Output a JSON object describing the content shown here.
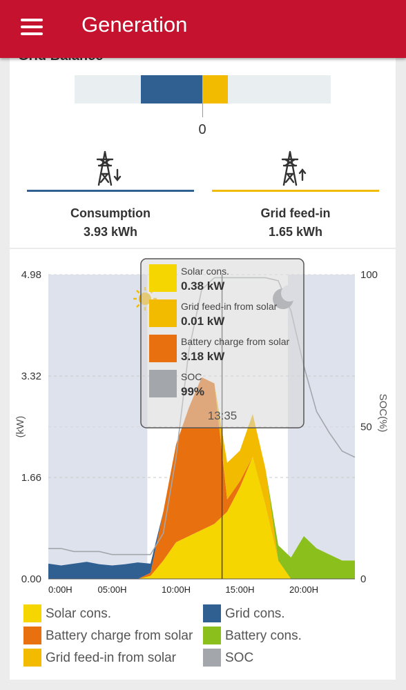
{
  "app": {
    "title": "Generation"
  },
  "grid_balance": {
    "title": "Grid Balance",
    "zero_label": "0",
    "colors": {
      "consumption": "#305f92",
      "feed_in": "#f3bb00"
    }
  },
  "stats": {
    "consumption": {
      "label": "Consumption",
      "value": "3.93 kWh"
    },
    "grid_feed_in": {
      "label": "Grid feed-in",
      "value": "1.65 kWh"
    }
  },
  "chart_data": {
    "type": "area",
    "ylabel": "(kW)",
    "y2label": "SOC(%)",
    "ylim": [
      0,
      4.98
    ],
    "y2lim": [
      0,
      100
    ],
    "yticks": [
      "4.98",
      "3.32",
      "1.66",
      "0.00"
    ],
    "y2ticks": [
      "100",
      "50",
      "0"
    ],
    "xticks": [
      "0:00H",
      "05:00H",
      "10:00H",
      "15:00H",
      "20:00H"
    ],
    "x": [
      "0:00",
      "1:00",
      "2:00",
      "3:00",
      "4:00",
      "5:00",
      "6:00",
      "7:00",
      "8:00",
      "9:00",
      "10:00",
      "11:00",
      "12:00",
      "13:00",
      "14:00",
      "15:00",
      "16:00",
      "17:00",
      "18:00",
      "19:00",
      "20:00",
      "21:00",
      "22:00",
      "23:00",
      "24:00"
    ],
    "series": [
      {
        "name": "Solar cons.",
        "color": "#f5d600",
        "values": [
          0,
          0,
          0,
          0,
          0,
          0,
          0,
          0,
          0.05,
          0.3,
          0.6,
          0.7,
          0.8,
          0.9,
          1.1,
          1.5,
          2.0,
          1.2,
          0.3,
          0,
          0,
          0,
          0,
          0,
          0
        ]
      },
      {
        "name": "Battery charge from solar",
        "color": "#e8700f",
        "values": [
          0,
          0,
          0,
          0,
          0,
          0,
          0,
          0,
          0.05,
          0.8,
          1.6,
          2.1,
          2.5,
          2.3,
          0.2,
          0.1,
          0,
          0,
          0,
          0,
          0,
          0,
          0,
          0,
          0
        ]
      },
      {
        "name": "Grid feed-in from solar",
        "color": "#f3bb00",
        "values": [
          0,
          0,
          0,
          0,
          0,
          0,
          0,
          0,
          0,
          0,
          0,
          0,
          0,
          0,
          0.6,
          0.5,
          0.7,
          0.6,
          0,
          0,
          0,
          0,
          0,
          0,
          0
        ]
      },
      {
        "name": "Grid cons.",
        "color": "#305f92",
        "values": [
          0.25,
          0.22,
          0.25,
          0.28,
          0.24,
          0.22,
          0.24,
          0.27,
          0.15,
          0,
          0,
          0,
          0,
          0,
          0,
          0,
          0,
          0,
          0,
          0,
          0,
          0,
          0,
          0,
          0
        ]
      },
      {
        "name": "Battery cons.",
        "color": "#8bbf1c",
        "values": [
          0,
          0,
          0,
          0,
          0,
          0,
          0,
          0,
          0,
          0,
          0,
          0,
          0,
          0,
          0,
          0,
          0,
          0,
          0.25,
          0.35,
          0.7,
          0.5,
          0.4,
          0.3,
          0.3
        ]
      },
      {
        "name": "SOC",
        "color": "#a3a7ab",
        "axis": "right",
        "values": [
          10,
          10,
          9,
          9,
          9,
          8,
          8,
          8,
          8,
          15,
          40,
          75,
          95,
          99,
          99,
          99,
          99,
          99,
          98,
          88,
          70,
          55,
          48,
          42,
          40
        ]
      }
    ],
    "night_shading": [
      [
        "0:00",
        "7:45"
      ],
      [
        "18:45",
        "24:00"
      ]
    ],
    "cursor": {
      "time": "13:35",
      "x": 13.6
    },
    "tooltip": {
      "time": "13:35",
      "items": [
        {
          "label": "Solar cons.",
          "value": "0.38 kW",
          "color": "#f5d600"
        },
        {
          "label": "Grid feed-in from solar",
          "value": "0.01 kW",
          "color": "#f3bb00"
        },
        {
          "label": "Battery charge from solar",
          "value": "3.18 kW",
          "color": "#e8700f"
        },
        {
          "label": "SOC",
          "value": "99%",
          "color": "#a3a7ab"
        }
      ]
    },
    "icons": [
      "sun-icon",
      "moon-icon"
    ]
  }
}
